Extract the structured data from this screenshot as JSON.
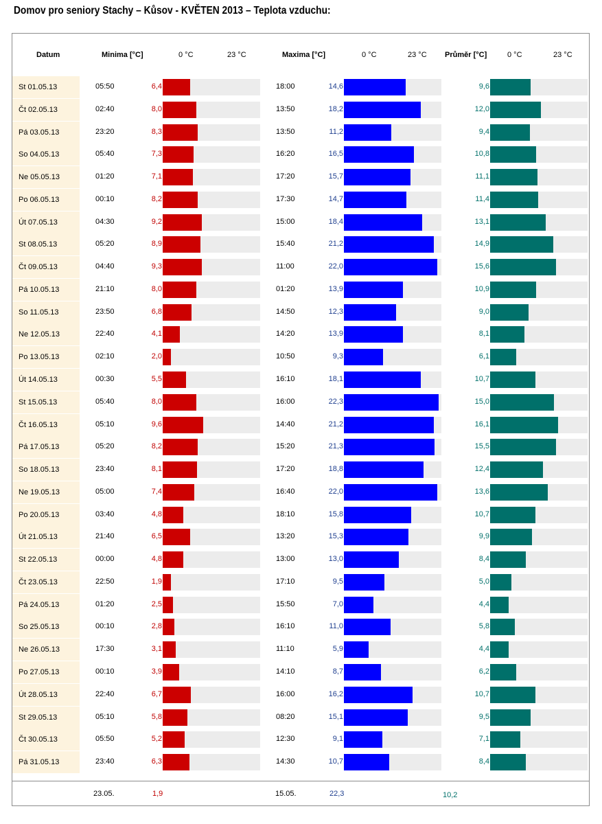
{
  "title": "Domov pro seniory Stachy – Kůsov - KVĚTEN 2013 – Teplota vzduchu:",
  "headers": {
    "date": "Datum",
    "min": "Minima [°C]",
    "max": "Maxima [°C]",
    "avg": "Průměr [°C]",
    "tick_zero": "0 °C",
    "tick_max": "23 °C"
  },
  "colors": {
    "min_bar": "#cc0000",
    "max_bar": "#0000ff",
    "avg_bar": "#00706a",
    "track": "#ececec",
    "date_bg": "#fdf3de"
  },
  "chart_data": {
    "type": "bar",
    "xlim": [
      0,
      23
    ],
    "unit": "°C",
    "rows": [
      {
        "date": "St  01.05.13",
        "min_time": "05:50",
        "min": "6,4",
        "max_time": "18:00",
        "max": "14,6",
        "avg": "9,6"
      },
      {
        "date": "Čt  02.05.13",
        "min_time": "02:40",
        "min": "8,0",
        "max_time": "13:50",
        "max": "18,2",
        "avg": "12,0"
      },
      {
        "date": "Pá  03.05.13",
        "min_time": "23:20",
        "min": "8,3",
        "max_time": "13:50",
        "max": "11,2",
        "avg": "9,4"
      },
      {
        "date": "So  04.05.13",
        "min_time": "05:40",
        "min": "7,3",
        "max_time": "16:20",
        "max": "16,5",
        "avg": "10,8"
      },
      {
        "date": "Ne  05.05.13",
        "min_time": "01:20",
        "min": "7,1",
        "max_time": "17:20",
        "max": "15,7",
        "avg": "11,1"
      },
      {
        "date": "Po  06.05.13",
        "min_time": "00:10",
        "min": "8,2",
        "max_time": "17:30",
        "max": "14,7",
        "avg": "11,4"
      },
      {
        "date": "Út  07.05.13",
        "min_time": "04:30",
        "min": "9,2",
        "max_time": "15:00",
        "max": "18,4",
        "avg": "13,1"
      },
      {
        "date": "St  08.05.13",
        "min_time": "05:20",
        "min": "8,9",
        "max_time": "15:40",
        "max": "21,2",
        "avg": "14,9"
      },
      {
        "date": "Čt  09.05.13",
        "min_time": "04:40",
        "min": "9,3",
        "max_time": "11:00",
        "max": "22,0",
        "avg": "15,6"
      },
      {
        "date": "Pá  10.05.13",
        "min_time": "21:10",
        "min": "8,0",
        "max_time": "01:20",
        "max": "13,9",
        "avg": "10,9"
      },
      {
        "date": "So  11.05.13",
        "min_time": "23:50",
        "min": "6,8",
        "max_time": "14:50",
        "max": "12,3",
        "avg": "9,0"
      },
      {
        "date": "Ne  12.05.13",
        "min_time": "22:40",
        "min": "4,1",
        "max_time": "14:20",
        "max": "13,9",
        "avg": "8,1"
      },
      {
        "date": "Po  13.05.13",
        "min_time": "02:10",
        "min": "2,0",
        "max_time": "10:50",
        "max": "9,3",
        "avg": "6,1"
      },
      {
        "date": "Út  14.05.13",
        "min_time": "00:30",
        "min": "5,5",
        "max_time": "16:10",
        "max": "18,1",
        "avg": "10,7"
      },
      {
        "date": "St  15.05.13",
        "min_time": "05:40",
        "min": "8,0",
        "max_time": "16:00",
        "max": "22,3",
        "avg": "15,0"
      },
      {
        "date": "Čt  16.05.13",
        "min_time": "05:10",
        "min": "9,6",
        "max_time": "14:40",
        "max": "21,2",
        "avg": "16,1"
      },
      {
        "date": "Pá  17.05.13",
        "min_time": "05:20",
        "min": "8,2",
        "max_time": "15:20",
        "max": "21,3",
        "avg": "15,5"
      },
      {
        "date": "So  18.05.13",
        "min_time": "23:40",
        "min": "8,1",
        "max_time": "17:20",
        "max": "18,8",
        "avg": "12,4"
      },
      {
        "date": "Ne  19.05.13",
        "min_time": "05:00",
        "min": "7,4",
        "max_time": "16:40",
        "max": "22,0",
        "avg": "13,6"
      },
      {
        "date": "Po  20.05.13",
        "min_time": "03:40",
        "min": "4,8",
        "max_time": "18:10",
        "max": "15,8",
        "avg": "10,7"
      },
      {
        "date": "Út  21.05.13",
        "min_time": "21:40",
        "min": "6,5",
        "max_time": "13:20",
        "max": "15,3",
        "avg": "9,9"
      },
      {
        "date": "St  22.05.13",
        "min_time": "00:00",
        "min": "4,8",
        "max_time": "13:00",
        "max": "13,0",
        "avg": "8,4"
      },
      {
        "date": "Čt  23.05.13",
        "min_time": "22:50",
        "min": "1,9",
        "max_time": "17:10",
        "max": "9,5",
        "avg": "5,0"
      },
      {
        "date": "Pá  24.05.13",
        "min_time": "01:20",
        "min": "2,5",
        "max_time": "15:50",
        "max": "7,0",
        "avg": "4,4"
      },
      {
        "date": "So  25.05.13",
        "min_time": "00:10",
        "min": "2,8",
        "max_time": "16:10",
        "max": "11,0",
        "avg": "5,8"
      },
      {
        "date": "Ne  26.05.13",
        "min_time": "17:30",
        "min": "3,1",
        "max_time": "11:10",
        "max": "5,9",
        "avg": "4,4"
      },
      {
        "date": "Po  27.05.13",
        "min_time": "00:10",
        "min": "3,9",
        "max_time": "14:10",
        "max": "8,7",
        "avg": "6,2"
      },
      {
        "date": "Út  28.05.13",
        "min_time": "22:40",
        "min": "6,7",
        "max_time": "16:00",
        "max": "16,2",
        "avg": "10,7"
      },
      {
        "date": "St  29.05.13",
        "min_time": "05:10",
        "min": "5,8",
        "max_time": "08:20",
        "max": "15,1",
        "avg": "9,5"
      },
      {
        "date": "Čt  30.05.13",
        "min_time": "05:50",
        "min": "5,2",
        "max_time": "12:30",
        "max": "9,1",
        "avg": "7,1"
      },
      {
        "date": "Pá  31.05.13",
        "min_time": "23:40",
        "min": "6,3",
        "max_time": "14:30",
        "max": "10,7",
        "avg": "8,4"
      }
    ],
    "summary": {
      "min_date": "23.05.",
      "min_value": "1,9",
      "max_date": "15.05.",
      "max_value": "22,3",
      "avg_value": "10,2"
    }
  }
}
